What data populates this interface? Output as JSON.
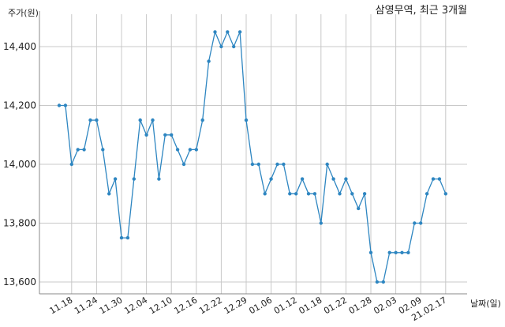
{
  "chart_data": {
    "type": "line",
    "title": "삼영무역, 최근 3개월",
    "ylabel": "주가(원)",
    "xlabel": "날짜(일)",
    "ylim": [
      13550,
      14500
    ],
    "yticks": [
      13600,
      13800,
      14000,
      14200,
      14400
    ],
    "ytick_labels": [
      "13,600",
      "13,800",
      "14,000",
      "14,200",
      "14,400"
    ],
    "xtick_labels": [
      {
        "label": "11.18",
        "index": 2
      },
      {
        "label": "11.24",
        "index": 6
      },
      {
        "label": "11.30",
        "index": 10
      },
      {
        "label": "12.04",
        "index": 14
      },
      {
        "label": "12.10",
        "index": 18
      },
      {
        "label": "12.16",
        "index": 22
      },
      {
        "label": "12.22",
        "index": 26
      },
      {
        "label": "12.29",
        "index": 30
      },
      {
        "label": "01.06",
        "index": 34
      },
      {
        "label": "01.12",
        "index": 38
      },
      {
        "label": "01.18",
        "index": 42
      },
      {
        "label": "01.22",
        "index": 46
      },
      {
        "label": "01.28",
        "index": 50
      },
      {
        "label": "02.03",
        "index": 54
      },
      {
        "label": "02.09",
        "index": 58
      },
      {
        "label": "21.02.17",
        "index": 62
      }
    ],
    "series": [
      {
        "color": "#2e86c1",
        "values": [
          14200,
          14200,
          14000,
          14050,
          14050,
          14150,
          14150,
          14050,
          13900,
          13950,
          13750,
          13750,
          13950,
          14150,
          14100,
          14150,
          13950,
          14100,
          14100,
          14050,
          14000,
          14050,
          14050,
          14150,
          14350,
          14450,
          14400,
          14450,
          14400,
          14450,
          14150,
          14000,
          14000,
          13900,
          13950,
          14000,
          14000,
          13900,
          13900,
          13950,
          13900,
          13900,
          13800,
          14000,
          13950,
          13900,
          13950,
          13900,
          13850,
          13900,
          13700,
          13600,
          13600,
          13700,
          13700,
          13700,
          13700,
          13800,
          13800,
          13900,
          13950,
          13950,
          13900
        ]
      }
    ]
  }
}
